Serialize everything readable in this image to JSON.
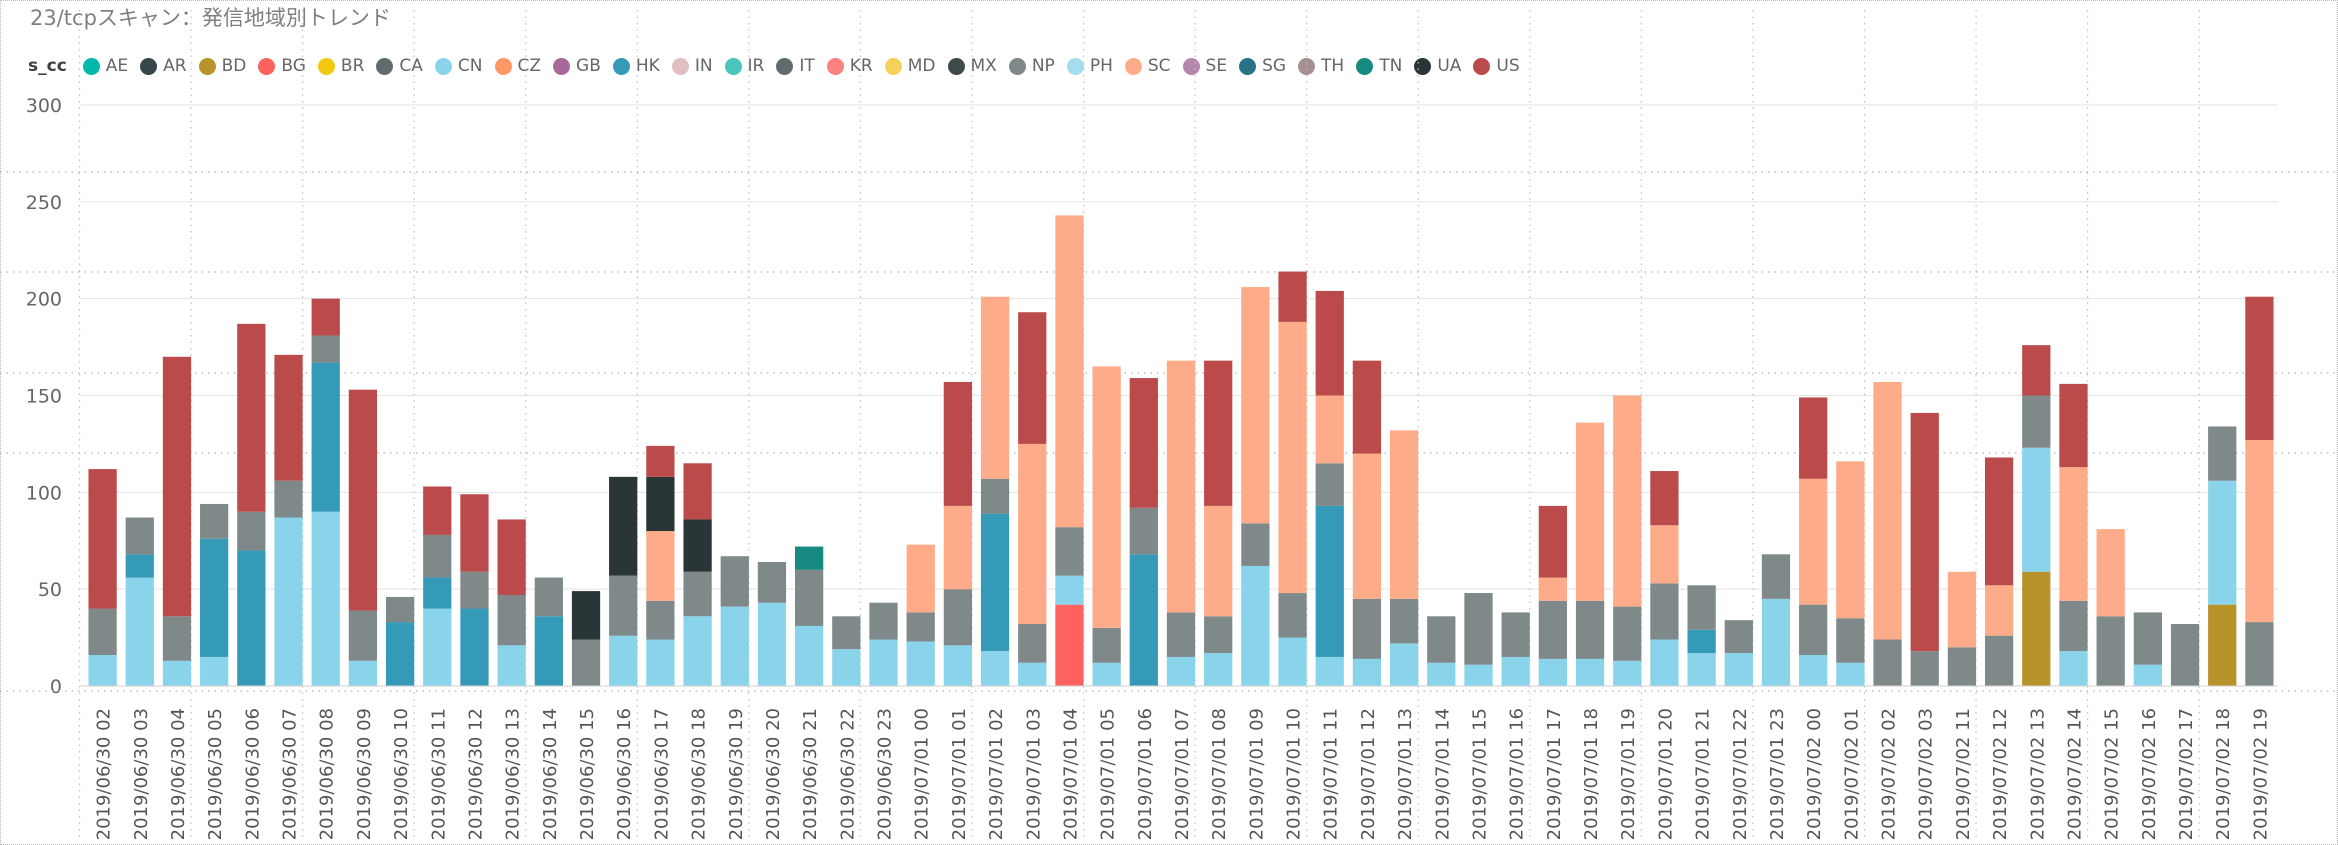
{
  "chart_data": {
    "type": "bar",
    "stacked": true,
    "title": "23/tcpスキャン：発信地域別トレンド",
    "legend": {
      "title": "s_cc",
      "placement": "top-left",
      "entries": [
        {
          "name": "AE",
          "color": "#01B8AA"
        },
        {
          "name": "AR",
          "color": "#374649"
        },
        {
          "name": "BD",
          "color": "#B8922A"
        },
        {
          "name": "BG",
          "color": "#FD625E"
        },
        {
          "name": "BR",
          "color": "#F2C80F"
        },
        {
          "name": "CA",
          "color": "#5F6B6D"
        },
        {
          "name": "CN",
          "color": "#8AD4EB"
        },
        {
          "name": "CZ",
          "color": "#FE9666"
        },
        {
          "name": "GB",
          "color": "#A66999"
        },
        {
          "name": "HK",
          "color": "#3599B8"
        },
        {
          "name": "IN",
          "color": "#DFBFBF"
        },
        {
          "name": "IR",
          "color": "#4AC5BB"
        },
        {
          "name": "IT",
          "color": "#5F6B6D"
        },
        {
          "name": "KR",
          "color": "#FB8281"
        },
        {
          "name": "MD",
          "color": "#F4D25A"
        },
        {
          "name": "MX",
          "color": "#3E4A4C"
        },
        {
          "name": "NP",
          "color": "#7F898A"
        },
        {
          "name": "PH",
          "color": "#A4DDEE"
        },
        {
          "name": "SC",
          "color": "#FDAB89"
        },
        {
          "name": "SE",
          "color": "#B687AC"
        },
        {
          "name": "SG",
          "color": "#28738A"
        },
        {
          "name": "TH",
          "color": "#A78F8F"
        },
        {
          "name": "TN",
          "color": "#168980"
        },
        {
          "name": "UA",
          "color": "#293537"
        },
        {
          "name": "US",
          "color": "#BB4A4A"
        }
      ]
    },
    "yaxis": {
      "min": 0,
      "max": 300,
      "ticks": [
        0,
        50,
        100,
        150,
        200,
        250,
        300
      ]
    },
    "grid": true,
    "categories": [
      "2019/06/30 02",
      "2019/06/30 03",
      "2019/06/30 04",
      "2019/06/30 05",
      "2019/06/30 06",
      "2019/06/30 07",
      "2019/06/30 08",
      "2019/06/30 09",
      "2019/06/30 10",
      "2019/06/30 11",
      "2019/06/30 12",
      "2019/06/30 13",
      "2019/06/30 14",
      "2019/06/30 15",
      "2019/06/30 16",
      "2019/06/30 17",
      "2019/06/30 18",
      "2019/06/30 19",
      "2019/06/30 20",
      "2019/06/30 21",
      "2019/06/30 22",
      "2019/06/30 23",
      "2019/07/01 00",
      "2019/07/01 01",
      "2019/07/01 02",
      "2019/07/01 03",
      "2019/07/01 04",
      "2019/07/01 05",
      "2019/07/01 06",
      "2019/07/01 07",
      "2019/07/01 08",
      "2019/07/01 09",
      "2019/07/01 10",
      "2019/07/01 11",
      "2019/07/01 12",
      "2019/07/01 13",
      "2019/07/01 14",
      "2019/07/01 15",
      "2019/07/01 16",
      "2019/07/01 17",
      "2019/07/01 18",
      "2019/07/01 19",
      "2019/07/01 20",
      "2019/07/01 21",
      "2019/07/01 22",
      "2019/07/01 23",
      "2019/07/02 00",
      "2019/07/02 01",
      "2019/07/02 02",
      "2019/07/02 03",
      "2019/07/02 11",
      "2019/07/02 12",
      "2019/07/02 13",
      "2019/07/02 14",
      "2019/07/02 15",
      "2019/07/02 16",
      "2019/07/02 17",
      "2019/07/02 18",
      "2019/07/02 19"
    ],
    "stacks": [
      [
        {
          "cc": "CN",
          "v": 16
        },
        {
          "cc": "NP",
          "v": 24
        },
        {
          "cc": "US",
          "v": 72
        }
      ],
      [
        {
          "cc": "CN",
          "v": 56
        },
        {
          "cc": "HK",
          "v": 12
        },
        {
          "cc": "NP",
          "v": 19
        }
      ],
      [
        {
          "cc": "CN",
          "v": 13
        },
        {
          "cc": "NP",
          "v": 23
        },
        {
          "cc": "US",
          "v": 134
        }
      ],
      [
        {
          "cc": "CN",
          "v": 15
        },
        {
          "cc": "HK",
          "v": 61
        },
        {
          "cc": "NP",
          "v": 18
        }
      ],
      [
        {
          "cc": "HK",
          "v": 70
        },
        {
          "cc": "NP",
          "v": 20
        },
        {
          "cc": "US",
          "v": 97
        }
      ],
      [
        {
          "cc": "CN",
          "v": 87
        },
        {
          "cc": "NP",
          "v": 19
        },
        {
          "cc": "US",
          "v": 65
        }
      ],
      [
        {
          "cc": "CN",
          "v": 90
        },
        {
          "cc": "HK",
          "v": 77
        },
        {
          "cc": "NP",
          "v": 14
        },
        {
          "cc": "US",
          "v": 19
        }
      ],
      [
        {
          "cc": "CN",
          "v": 13
        },
        {
          "cc": "NP",
          "v": 26
        },
        {
          "cc": "US",
          "v": 114
        }
      ],
      [
        {
          "cc": "HK",
          "v": 33
        },
        {
          "cc": "NP",
          "v": 13
        }
      ],
      [
        {
          "cc": "CN",
          "v": 40
        },
        {
          "cc": "HK",
          "v": 16
        },
        {
          "cc": "NP",
          "v": 22
        },
        {
          "cc": "US",
          "v": 25
        }
      ],
      [
        {
          "cc": "HK",
          "v": 40
        },
        {
          "cc": "NP",
          "v": 19
        },
        {
          "cc": "US",
          "v": 40
        }
      ],
      [
        {
          "cc": "CN",
          "v": 21
        },
        {
          "cc": "NP",
          "v": 26
        },
        {
          "cc": "US",
          "v": 39
        }
      ],
      [
        {
          "cc": "HK",
          "v": 36
        },
        {
          "cc": "NP",
          "v": 20
        }
      ],
      [
        {
          "cc": "NP",
          "v": 24
        },
        {
          "cc": "UA",
          "v": 25
        }
      ],
      [
        {
          "cc": "CN",
          "v": 26
        },
        {
          "cc": "NP",
          "v": 31
        },
        {
          "cc": "UA",
          "v": 51
        }
      ],
      [
        {
          "cc": "CN",
          "v": 24
        },
        {
          "cc": "NP",
          "v": 20
        },
        {
          "cc": "SC",
          "v": 36
        },
        {
          "cc": "UA",
          "v": 28
        },
        {
          "cc": "US",
          "v": 16
        }
      ],
      [
        {
          "cc": "CN",
          "v": 36
        },
        {
          "cc": "NP",
          "v": 23
        },
        {
          "cc": "UA",
          "v": 27
        },
        {
          "cc": "US",
          "v": 29
        }
      ],
      [
        {
          "cc": "CN",
          "v": 41
        },
        {
          "cc": "NP",
          "v": 26
        }
      ],
      [
        {
          "cc": "CN",
          "v": 43
        },
        {
          "cc": "NP",
          "v": 21
        }
      ],
      [
        {
          "cc": "CN",
          "v": 31
        },
        {
          "cc": "NP",
          "v": 29
        },
        {
          "cc": "TN",
          "v": 12
        }
      ],
      [
        {
          "cc": "CN",
          "v": 19
        },
        {
          "cc": "NP",
          "v": 17
        }
      ],
      [
        {
          "cc": "CN",
          "v": 24
        },
        {
          "cc": "NP",
          "v": 19
        }
      ],
      [
        {
          "cc": "CN",
          "v": 23
        },
        {
          "cc": "NP",
          "v": 15
        },
        {
          "cc": "SC",
          "v": 35
        }
      ],
      [
        {
          "cc": "CN",
          "v": 21
        },
        {
          "cc": "NP",
          "v": 29
        },
        {
          "cc": "SC",
          "v": 43
        },
        {
          "cc": "US",
          "v": 64
        }
      ],
      [
        {
          "cc": "CN",
          "v": 18
        },
        {
          "cc": "HK",
          "v": 71
        },
        {
          "cc": "NP",
          "v": 18
        },
        {
          "cc": "SC",
          "v": 94
        }
      ],
      [
        {
          "cc": "CN",
          "v": 12
        },
        {
          "cc": "NP",
          "v": 20
        },
        {
          "cc": "SC",
          "v": 93
        },
        {
          "cc": "US",
          "v": 68
        }
      ],
      [
        {
          "cc": "BG",
          "v": 42
        },
        {
          "cc": "CN",
          "v": 15
        },
        {
          "cc": "NP",
          "v": 25
        },
        {
          "cc": "SC",
          "v": 161
        }
      ],
      [
        {
          "cc": "CN",
          "v": 12
        },
        {
          "cc": "NP",
          "v": 18
        },
        {
          "cc": "SC",
          "v": 135
        }
      ],
      [
        {
          "cc": "HK",
          "v": 68
        },
        {
          "cc": "NP",
          "v": 24
        },
        {
          "cc": "US",
          "v": 67
        }
      ],
      [
        {
          "cc": "CN",
          "v": 15
        },
        {
          "cc": "NP",
          "v": 23
        },
        {
          "cc": "SC",
          "v": 130
        }
      ],
      [
        {
          "cc": "CN",
          "v": 17
        },
        {
          "cc": "NP",
          "v": 19
        },
        {
          "cc": "SC",
          "v": 57
        },
        {
          "cc": "US",
          "v": 75
        }
      ],
      [
        {
          "cc": "CN",
          "v": 62
        },
        {
          "cc": "NP",
          "v": 22
        },
        {
          "cc": "SC",
          "v": 122
        }
      ],
      [
        {
          "cc": "CN",
          "v": 25
        },
        {
          "cc": "NP",
          "v": 23
        },
        {
          "cc": "SC",
          "v": 140
        },
        {
          "cc": "US",
          "v": 26
        }
      ],
      [
        {
          "cc": "CN",
          "v": 15
        },
        {
          "cc": "HK",
          "v": 78
        },
        {
          "cc": "NP",
          "v": 22
        },
        {
          "cc": "SC",
          "v": 35
        },
        {
          "cc": "US",
          "v": 54
        }
      ],
      [
        {
          "cc": "CN",
          "v": 14
        },
        {
          "cc": "NP",
          "v": 31
        },
        {
          "cc": "SC",
          "v": 75
        },
        {
          "cc": "US",
          "v": 48
        }
      ],
      [
        {
          "cc": "CN",
          "v": 22
        },
        {
          "cc": "NP",
          "v": 23
        },
        {
          "cc": "SC",
          "v": 87
        }
      ],
      [
        {
          "cc": "CN",
          "v": 12
        },
        {
          "cc": "NP",
          "v": 24
        }
      ],
      [
        {
          "cc": "CN",
          "v": 11
        },
        {
          "cc": "NP",
          "v": 37
        }
      ],
      [
        {
          "cc": "CN",
          "v": 15
        },
        {
          "cc": "NP",
          "v": 23
        }
      ],
      [
        {
          "cc": "CN",
          "v": 14
        },
        {
          "cc": "NP",
          "v": 30
        },
        {
          "cc": "SC",
          "v": 12
        },
        {
          "cc": "US",
          "v": 37
        }
      ],
      [
        {
          "cc": "CN",
          "v": 14
        },
        {
          "cc": "NP",
          "v": 30
        },
        {
          "cc": "SC",
          "v": 92
        }
      ],
      [
        {
          "cc": "CN",
          "v": 13
        },
        {
          "cc": "NP",
          "v": 28
        },
        {
          "cc": "SC",
          "v": 109
        }
      ],
      [
        {
          "cc": "CN",
          "v": 24
        },
        {
          "cc": "NP",
          "v": 29
        },
        {
          "cc": "SC",
          "v": 30
        },
        {
          "cc": "US",
          "v": 28
        }
      ],
      [
        {
          "cc": "CN",
          "v": 17
        },
        {
          "cc": "HK",
          "v": 12
        },
        {
          "cc": "NP",
          "v": 23
        }
      ],
      [
        {
          "cc": "CN",
          "v": 17
        },
        {
          "cc": "NP",
          "v": 17
        }
      ],
      [
        {
          "cc": "CN",
          "v": 45
        },
        {
          "cc": "NP",
          "v": 23
        }
      ],
      [
        {
          "cc": "CN",
          "v": 16
        },
        {
          "cc": "NP",
          "v": 26
        },
        {
          "cc": "SC",
          "v": 65
        },
        {
          "cc": "US",
          "v": 42
        }
      ],
      [
        {
          "cc": "CN",
          "v": 12
        },
        {
          "cc": "NP",
          "v": 23
        },
        {
          "cc": "SC",
          "v": 81
        }
      ],
      [
        {
          "cc": "NP",
          "v": 24
        },
        {
          "cc": "SC",
          "v": 133
        }
      ],
      [
        {
          "cc": "NP",
          "v": 18
        },
        {
          "cc": "US",
          "v": 123
        }
      ],
      [
        {
          "cc": "NP",
          "v": 20
        },
        {
          "cc": "SC",
          "v": 39
        }
      ],
      [
        {
          "cc": "NP",
          "v": 26
        },
        {
          "cc": "SC",
          "v": 26
        },
        {
          "cc": "US",
          "v": 66
        }
      ],
      [
        {
          "cc": "BD",
          "v": 59
        },
        {
          "cc": "CN",
          "v": 64
        },
        {
          "cc": "NP",
          "v": 27
        },
        {
          "cc": "US",
          "v": 26
        }
      ],
      [
        {
          "cc": "CN",
          "v": 18
        },
        {
          "cc": "NP",
          "v": 26
        },
        {
          "cc": "SC",
          "v": 69
        },
        {
          "cc": "US",
          "v": 43
        }
      ],
      [
        {
          "cc": "NP",
          "v": 36
        },
        {
          "cc": "SC",
          "v": 45
        }
      ],
      [
        {
          "cc": "CN",
          "v": 11
        },
        {
          "cc": "NP",
          "v": 27
        }
      ],
      [
        {
          "cc": "NP",
          "v": 32
        }
      ],
      [
        {
          "cc": "BD",
          "v": 42
        },
        {
          "cc": "CN",
          "v": 64
        },
        {
          "cc": "NP",
          "v": 28
        }
      ],
      [
        {
          "cc": "NP",
          "v": 33
        },
        {
          "cc": "SC",
          "v": 94
        },
        {
          "cc": "US",
          "v": 74
        }
      ]
    ]
  }
}
